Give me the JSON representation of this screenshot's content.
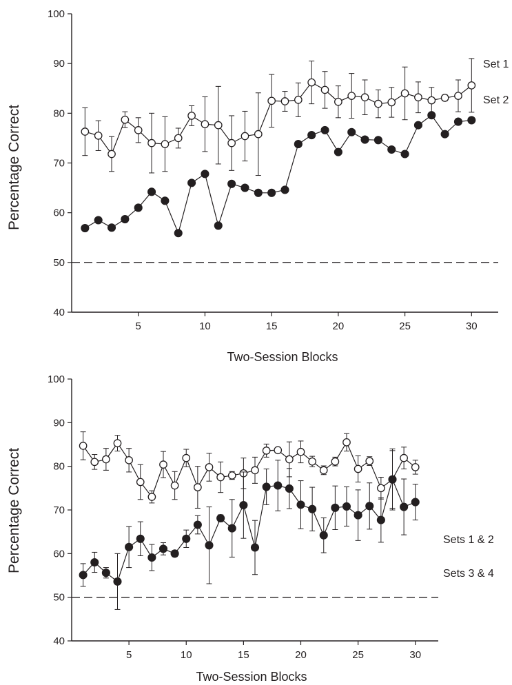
{
  "chart_data": [
    {
      "type": "line",
      "xlabel": "Two-Session Blocks",
      "ylabel": "Percentage Correct",
      "ylim": [
        40,
        100
      ],
      "xlim": [
        0,
        32
      ],
      "xticks": [
        5,
        10,
        15,
        20,
        25,
        30
      ],
      "yticks": [
        40,
        50,
        60,
        70,
        80,
        90,
        100
      ],
      "chance_line": 50,
      "grid": false,
      "legend": "inline labels at right end of series",
      "x": [
        1,
        2,
        3,
        4,
        5,
        6,
        7,
        8,
        9,
        10,
        11,
        12,
        13,
        14,
        15,
        16,
        17,
        18,
        19,
        20,
        21,
        22,
        23,
        24,
        25,
        26,
        27,
        28,
        29,
        30
      ],
      "series": [
        {
          "name": "Set 1",
          "marker": "open-circle",
          "values": [
            76.3,
            75.5,
            71.8,
            78.7,
            76.6,
            74.0,
            73.8,
            75.0,
            79.5,
            77.8,
            77.6,
            74.0,
            75.4,
            75.8,
            82.5,
            82.4,
            82.7,
            86.2,
            84.7,
            82.3,
            83.5,
            83.2,
            81.9,
            82.2,
            84.0,
            83.2,
            82.6,
            83.1,
            83.5,
            85.6
          ],
          "error": [
            4.8,
            3.0,
            3.5,
            1.6,
            2.5,
            6.0,
            5.5,
            2.0,
            2.0,
            5.5,
            7.8,
            5.5,
            5.0,
            8.3,
            5.3,
            2.0,
            3.4,
            4.3,
            3.7,
            3.2,
            4.5,
            3.5,
            2.8,
            3.0,
            5.3,
            3.1,
            2.6,
            0.6,
            3.2,
            5.4
          ]
        },
        {
          "name": "Set 2",
          "marker": "filled-circle",
          "values": [
            56.9,
            58.5,
            57.0,
            58.7,
            61.0,
            64.2,
            62.4,
            55.9,
            66.0,
            67.8,
            57.4,
            65.8,
            65.0,
            64.0,
            64.0,
            64.6,
            73.8,
            75.6,
            76.6,
            72.2,
            76.2,
            74.7,
            74.6,
            72.7,
            71.8,
            77.6,
            79.6,
            75.8,
            78.3,
            78.6
          ]
        }
      ]
    },
    {
      "type": "line",
      "xlabel": "Two-Session Blocks",
      "ylabel": "Percentage Correct",
      "ylim": [
        40,
        100
      ],
      "xlim": [
        0,
        32
      ],
      "xticks": [
        5,
        10,
        15,
        20,
        25,
        30
      ],
      "yticks": [
        40,
        50,
        60,
        70,
        80,
        90,
        100
      ],
      "chance_line": 50,
      "grid": false,
      "legend": "inline labels at right end of series",
      "x": [
        1,
        2,
        3,
        4,
        5,
        6,
        7,
        8,
        9,
        10,
        11,
        12,
        13,
        14,
        15,
        16,
        17,
        18,
        19,
        20,
        21,
        22,
        23,
        24,
        25,
        26,
        27,
        28,
        29,
        30
      ],
      "series": [
        {
          "name": "Sets 1 & 2",
          "marker": "open-circle",
          "values": [
            84.7,
            81.0,
            81.6,
            85.3,
            81.4,
            76.4,
            73.0,
            80.4,
            75.6,
            81.9,
            75.2,
            79.8,
            77.5,
            77.9,
            78.4,
            79.1,
            83.6,
            83.7,
            81.6,
            83.3,
            81.1,
            79.1,
            81.1,
            85.5,
            79.4,
            81.2,
            75.0,
            77.0,
            81.9,
            79.8
          ],
          "error": [
            3.2,
            1.7,
            2.5,
            1.8,
            2.7,
            4.0,
            1.4,
            3.0,
            3.2,
            2.0,
            4.8,
            3.2,
            3.5,
            0.9,
            3.5,
            3.0,
            1.5,
            0.5,
            4.0,
            2.5,
            1.2,
            1.0,
            1.0,
            2.0,
            3.0,
            1.0,
            2.5,
            7.0,
            2.5,
            1.6
          ]
        },
        {
          "name": "Sets 3 & 4",
          "marker": "filled-circle",
          "values": [
            55.1,
            58.0,
            55.6,
            53.6,
            61.5,
            63.4,
            59.1,
            61.1,
            60.0,
            63.4,
            66.6,
            61.9,
            68.1,
            65.8,
            71.1,
            61.4,
            75.3,
            75.6,
            74.9,
            71.2,
            70.2,
            64.2,
            70.5,
            70.8,
            68.8,
            70.9,
            67.7,
            77.0,
            70.7,
            71.8
          ],
          "error": [
            2.6,
            2.3,
            1.2,
            6.4,
            4.7,
            3.9,
            3.0,
            1.4,
            0.7,
            2.0,
            2.1,
            8.8,
            0.8,
            6.6,
            7.6,
            6.2,
            4.1,
            5.8,
            4.6,
            5.5,
            5.0,
            4.0,
            5.0,
            4.5,
            5.8,
            5.3,
            5.1,
            6.6,
            6.4,
            4.1
          ]
        }
      ]
    }
  ]
}
